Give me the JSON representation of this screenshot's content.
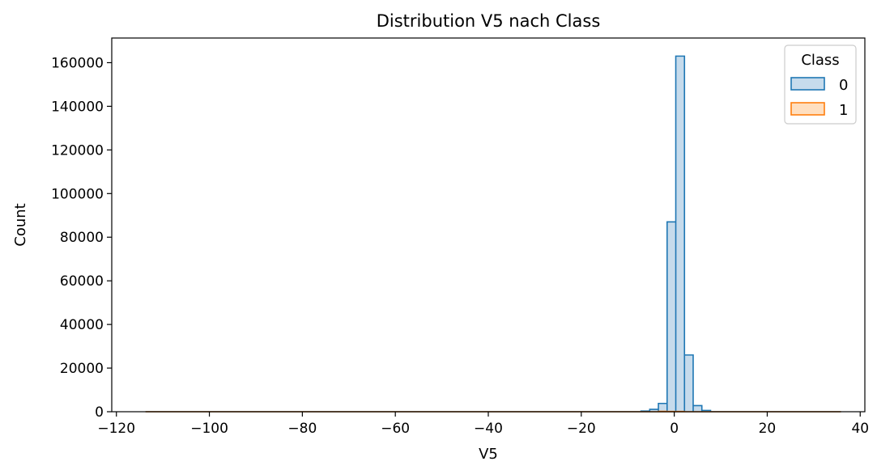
{
  "chart_data": {
    "type": "histogram",
    "title": "Distribution V5 nach Class",
    "xlabel": "V5",
    "ylabel": "Count",
    "xlim": [
      -121,
      41
    ],
    "ylim": [
      0,
      171300
    ],
    "xticks": [
      -120,
      -100,
      -80,
      -60,
      -40,
      -20,
      0,
      20,
      40
    ],
    "xtick_labels": [
      "−120",
      "−100",
      "−80",
      "−60",
      "−40",
      "−20",
      "0",
      "20",
      "40"
    ],
    "yticks": [
      0,
      20000,
      40000,
      60000,
      80000,
      100000,
      120000,
      140000,
      160000
    ],
    "ytick_labels": [
      "0",
      "20000",
      "40000",
      "60000",
      "80000",
      "100000",
      "120000",
      "140000",
      "160000"
    ],
    "grid": false,
    "legend": {
      "title": "Class",
      "placement": "top-right"
    },
    "bins": {
      "start": -113.74,
      "width": 1.87,
      "count": 80
    },
    "series": [
      {
        "name": "0",
        "color": "#1f77b4",
        "fill": "#c6dbec",
        "nonzero_bins": [
          {
            "x0": -7.15,
            "x1": -5.28,
            "count": 300
          },
          {
            "x0": -5.28,
            "x1": -3.41,
            "count": 1100
          },
          {
            "x0": -3.41,
            "x1": -1.54,
            "count": 3800
          },
          {
            "x0": -1.54,
            "x1": 0.33,
            "count": 87000
          },
          {
            "x0": 0.33,
            "x1": 2.2,
            "count": 163000
          },
          {
            "x0": 2.2,
            "x1": 4.07,
            "count": 26000
          },
          {
            "x0": 4.07,
            "x1": 5.94,
            "count": 2800
          },
          {
            "x0": 5.94,
            "x1": 7.81,
            "count": 600
          }
        ]
      },
      {
        "name": "1",
        "color": "#ff7f0e",
        "fill": "#ffdfc0",
        "nonzero_bins": [
          {
            "x0": -3.41,
            "x1": -1.54,
            "count": 150
          },
          {
            "x0": -1.54,
            "x1": 0.33,
            "count": 120
          },
          {
            "x0": 0.33,
            "x1": 2.2,
            "count": 110
          }
        ]
      }
    ]
  }
}
